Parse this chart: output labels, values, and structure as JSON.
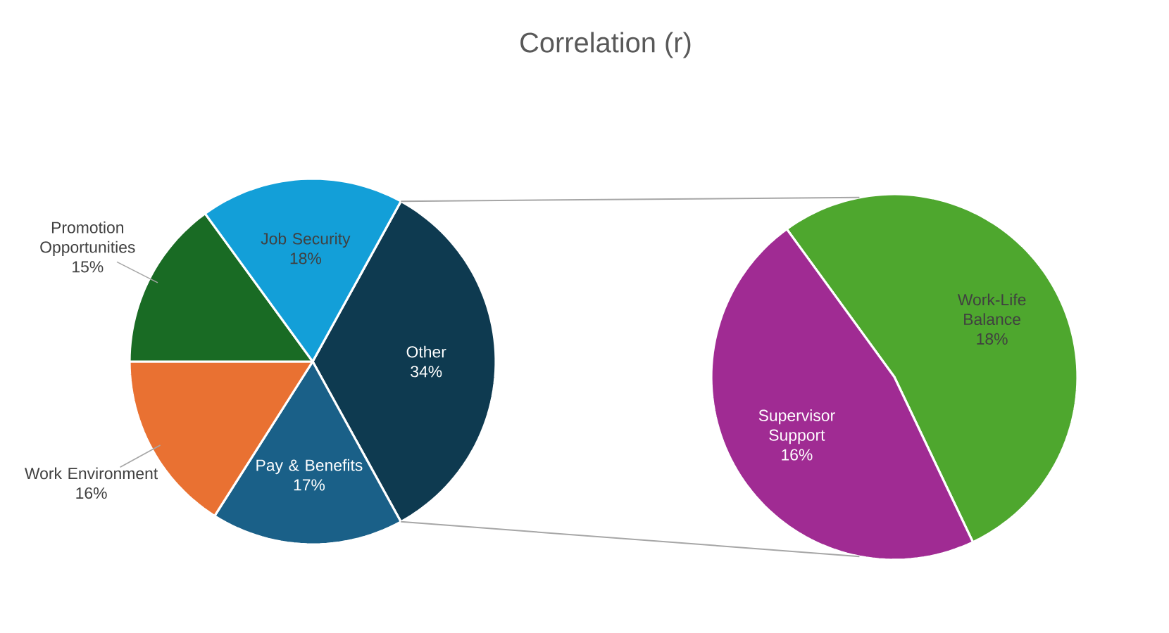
{
  "chart_data": [
    {
      "type": "pie",
      "title": "Correlation (r)",
      "categories": [
        "Other",
        "Pay & Benefits",
        "Work Environment",
        "Promotion Opportunities",
        "Job Security"
      ],
      "values": [
        34,
        17,
        16,
        15,
        18
      ],
      "value_labels": [
        "34%",
        "17%",
        "16%",
        "15%",
        "18%"
      ],
      "colors": [
        "#0e3a50",
        "#1a6088",
        "#e97132",
        "#196b24",
        "#139fd8"
      ]
    },
    {
      "type": "pie",
      "categories": [
        "Work-Life Balance",
        "Supervisor Support"
      ],
      "values": [
        18,
        16
      ],
      "value_labels": [
        "18%",
        "16%"
      ],
      "colors": [
        "#4ea72e",
        "#a02b93"
      ]
    }
  ]
}
